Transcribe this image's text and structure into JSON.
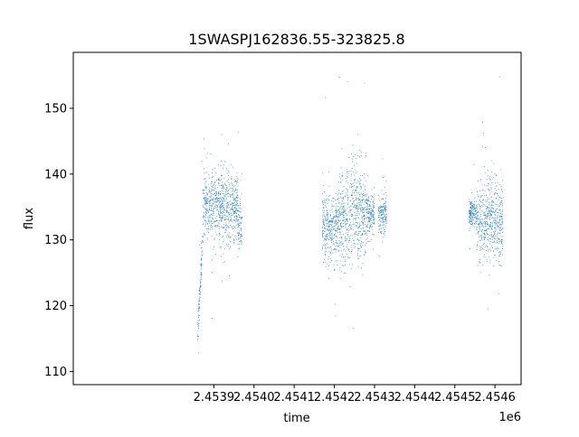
{
  "chart_data": {
    "type": "scatter",
    "title": "1SWASPJ162836.55-323825.8",
    "xlabel": "time",
    "ylabel": "flux",
    "x_offset_label": "1e6",
    "x_tick_labels": [
      "2.4539",
      "2.4540",
      "2.4541",
      "2.4542",
      "2.4543",
      "2.4544",
      "2.4545",
      "2.4546"
    ],
    "y_tick_labels": [
      "110",
      "120",
      "130",
      "140",
      "150"
    ],
    "x_ticks": [
      2453900,
      2454000,
      2454100,
      2454200,
      2454300,
      2454400,
      2454500,
      2454600
    ],
    "y_ticks": [
      110,
      120,
      130,
      140,
      150
    ],
    "xlim": [
      2453550,
      2454665
    ],
    "ylim": [
      108,
      158.5
    ],
    "grid": false,
    "marker_color": "#1f77b4",
    "series": [
      {
        "segments": [
          {
            "x_start": 2453860,
            "x_end": 2453872,
            "y_start": 116,
            "y_end": 130,
            "spread": 3
          },
          {
            "x_start": 2453872,
            "x_end": 2453960,
            "center": 135,
            "spread": 5
          },
          {
            "x_start": 2453960,
            "x_end": 2453970,
            "center": 132,
            "spread": 4
          },
          {
            "x_start": 2454170,
            "x_end": 2454210,
            "center": 132,
            "spread": 5
          },
          {
            "x_start": 2454210,
            "x_end": 2454245,
            "center": 133,
            "spread": 8
          },
          {
            "x_start": 2454245,
            "x_end": 2454280,
            "center": 134,
            "spread": 7
          },
          {
            "x_start": 2454280,
            "x_end": 2454300,
            "center": 134,
            "spread": 3
          },
          {
            "x_start": 2454310,
            "x_end": 2454330,
            "center": 134,
            "spread": 3
          },
          {
            "x_start": 2454535,
            "x_end": 2454555,
            "center": 134,
            "spread": 2
          },
          {
            "x_start": 2454555,
            "x_end": 2454620,
            "center": 133,
            "spread": 6
          }
        ]
      }
    ]
  }
}
